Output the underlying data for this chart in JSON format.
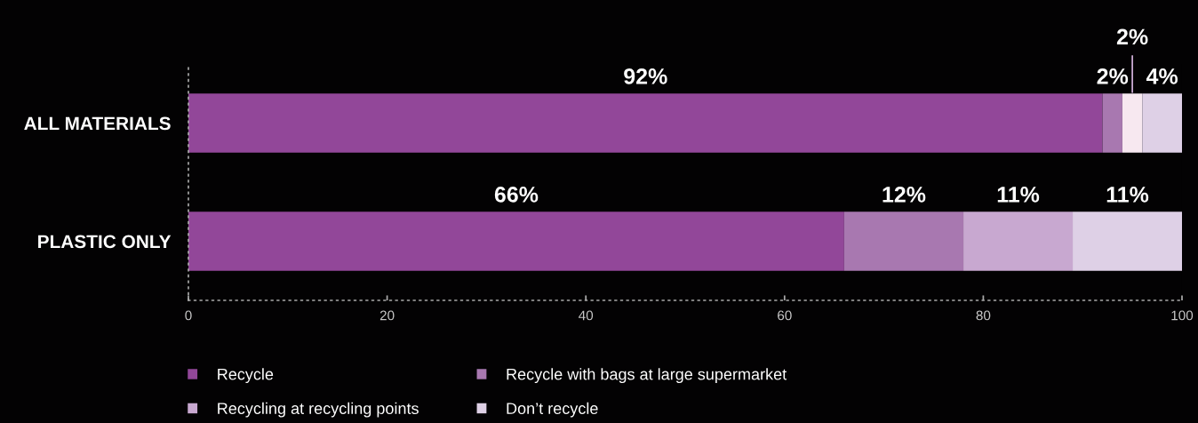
{
  "chart_data": {
    "type": "bar",
    "orientation": "horizontal",
    "stacked": true,
    "categories": [
      "ALL MATERIALS",
      "PLASTIC ONLY"
    ],
    "series": [
      {
        "name": "Recycle",
        "color": "#924799",
        "values": [
          92,
          66
        ],
        "value_labels": [
          "92%",
          "66%"
        ]
      },
      {
        "name": "Recycle with bags at large supermarket",
        "color": "#a878b0",
        "values": [
          2,
          12
        ],
        "value_labels": [
          "2%",
          "12%"
        ]
      },
      {
        "name": "Recycling at recycling points",
        "color": "#c8a8d0",
        "colors": [
          "#f7e8f0",
          "#c8a8d0"
        ],
        "values": [
          2,
          11
        ],
        "value_labels": [
          "2%",
          "11%"
        ]
      },
      {
        "name": "Don’t recycle",
        "color": "#ded0e6",
        "values": [
          4,
          11
        ],
        "value_labels": [
          "4%",
          "11%"
        ]
      }
    ],
    "xlim": [
      0,
      100
    ],
    "xticks": [
      0,
      20,
      40,
      60,
      80,
      100
    ],
    "legend": "bottom"
  }
}
